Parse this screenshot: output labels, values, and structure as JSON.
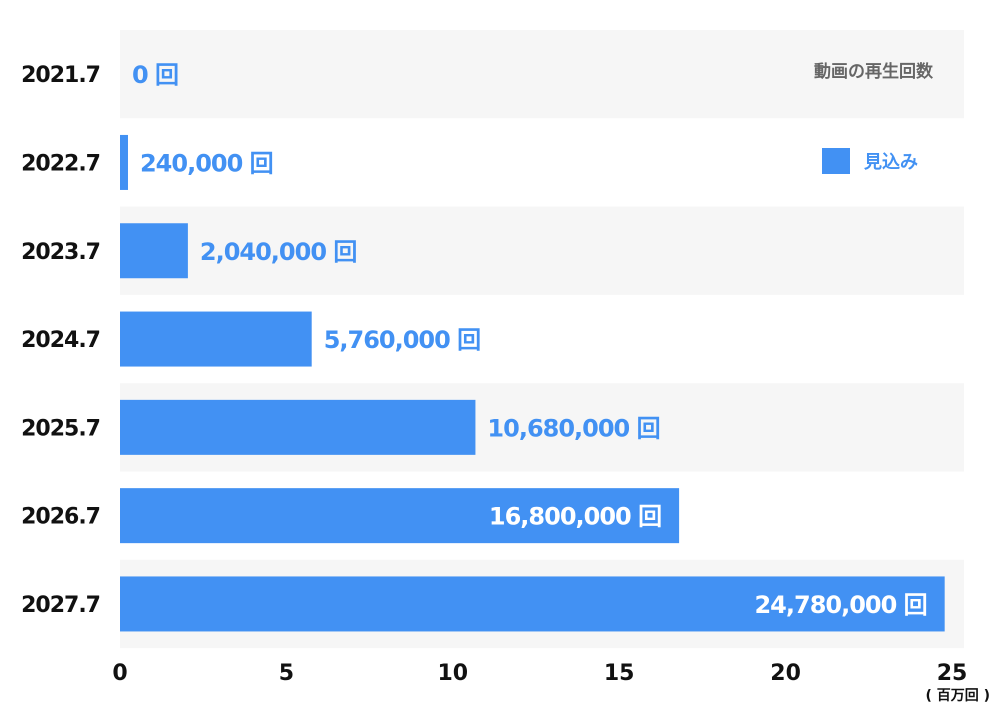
{
  "chart_data": {
    "type": "bar",
    "orientation": "horizontal",
    "title": "動画の再生回数",
    "categories": [
      "2021.7",
      "2022.7",
      "2023.7",
      "2024.7",
      "2025.7",
      "2026.7",
      "2027.7"
    ],
    "series": [
      {
        "name": "見込み",
        "values": [
          0,
          0.24,
          2.04,
          5.76,
          10.68,
          16.8,
          24.78
        ],
        "value_labels": [
          "0 回",
          "240,000 回",
          "2,040,000 回",
          "5,760,000 回",
          "10,680,000 回",
          "16,800,000 回",
          "24,780,000 回"
        ]
      }
    ],
    "x_ticks": [
      "0",
      "5",
      "10",
      "15",
      "20",
      "25"
    ],
    "xlim": [
      0,
      25
    ],
    "x_unit": "( 百万回 )",
    "legend_position": "top-right",
    "colors": {
      "bar": "#4291f3",
      "band": "#f6f6f6",
      "title": "#666666",
      "axis_text": "#111111"
    }
  }
}
